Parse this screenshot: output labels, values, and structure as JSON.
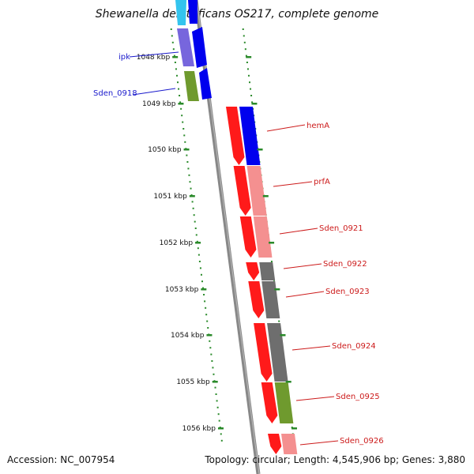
{
  "title": "Shewanella denitrificans OS217, complete genome",
  "accession": "Accession: NC_007954",
  "summary": "Topology: circular; Length: 4,545,906 bp; Genes: 3,880",
  "ticks": [
    "1048 kbp",
    "1049 kbp",
    "1050 kbp",
    "1051 kbp",
    "1052 kbp",
    "1053 kbp",
    "1054 kbp",
    "1055 kbp",
    "1056 kbp"
  ],
  "gene_labels": [
    {
      "name": "ipk",
      "strand": "minus"
    },
    {
      "name": "Sden_0918",
      "strand": "minus"
    },
    {
      "name": "hemA",
      "strand": "plus"
    },
    {
      "name": "prfA",
      "strand": "plus"
    },
    {
      "name": "Sden_0921",
      "strand": "plus"
    },
    {
      "name": "Sden_0922",
      "strand": "plus"
    },
    {
      "name": "Sden_0923",
      "strand": "plus"
    },
    {
      "name": "Sden_0924",
      "strand": "plus"
    },
    {
      "name": "Sden_0925",
      "strand": "plus"
    },
    {
      "name": "Sden_0926",
      "strand": "plus"
    }
  ],
  "colors": {
    "backbone": "#888888",
    "tick": "#2a8a2a",
    "minus_label": "#1a1acc",
    "plus_label": "#cc1a1a",
    "cds_red": "#ff1a1a",
    "cog_blue": "#0000ee",
    "cog_pink": "#f49090",
    "cog_gray": "#6e6e6e",
    "cog_green": "#6f9a2e",
    "cog_purple": "#7766dd",
    "cog_cyan": "#33c4ee"
  }
}
